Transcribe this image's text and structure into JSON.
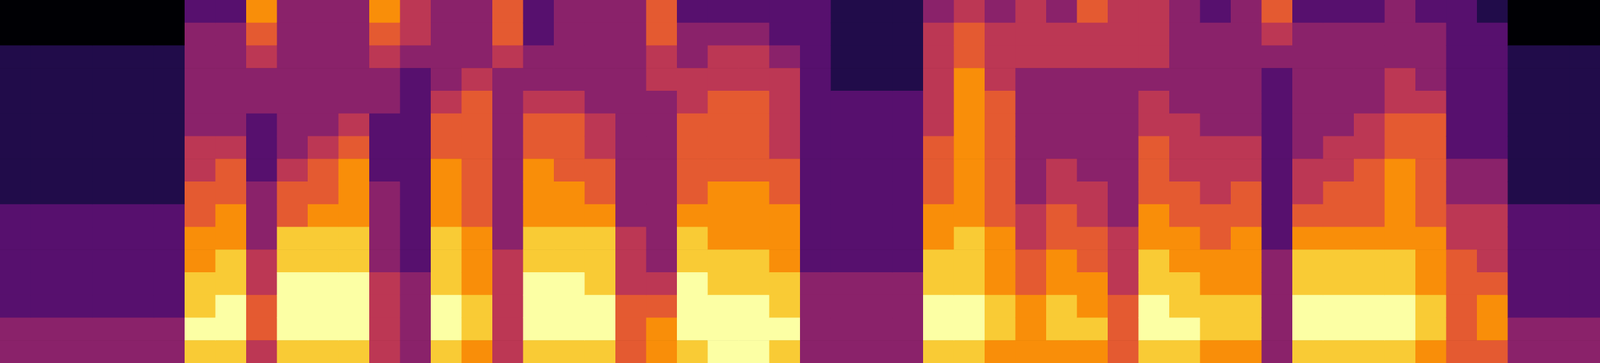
{
  "chart_data": {
    "type": "heatmap",
    "color": "inferno",
    "tick_labels": false,
    "cells": [
      [
        1,
        1,
        2,
        2,
        2,
        2,
        2,
        2,
        2,
        3,
        3,
        3,
        3,
        3,
        4,
        4
      ],
      [
        1,
        1,
        2,
        2,
        2,
        2,
        2,
        2,
        2,
        3,
        3,
        3,
        3,
        3,
        4,
        4
      ],
      [
        1,
        1,
        2,
        2,
        2,
        2,
        2,
        2,
        2,
        3,
        3,
        3,
        3,
        3,
        4,
        4
      ],
      [
        1,
        1,
        2,
        2,
        2,
        2,
        2,
        2,
        2,
        3,
        3,
        3,
        3,
        3,
        4,
        4
      ],
      [
        1,
        1,
        2,
        2,
        2,
        2,
        2,
        2,
        2,
        3,
        3,
        3,
        3,
        3,
        4,
        4
      ],
      [
        1,
        1,
        2,
        2,
        2,
        2,
        2,
        2,
        2,
        3,
        3,
        3,
        3,
        3,
        4,
        4
      ],
      [
        3,
        4,
        4,
        4,
        4,
        4,
        5,
        5,
        6,
        6,
        7,
        7,
        8,
        8,
        9,
        8
      ],
      [
        3,
        4,
        4,
        4,
        4,
        4,
        5,
        6,
        6,
        7,
        7,
        8,
        8,
        9,
        9,
        8
      ],
      [
        7,
        6,
        5,
        4,
        4,
        3,
        3,
        3,
        4,
        4,
        4,
        5,
        5,
        6,
        6,
        5
      ],
      [
        4,
        4,
        4,
        4,
        4,
        4,
        4,
        5,
        6,
        6,
        8,
        8,
        9,
        9,
        9,
        8
      ],
      [
        4,
        4,
        4,
        4,
        4,
        4,
        5,
        6,
        6,
        7,
        8,
        8,
        9,
        9,
        9,
        8
      ],
      [
        4,
        4,
        4,
        4,
        4,
        5,
        6,
        7,
        7,
        7,
        8,
        8,
        9,
        9,
        9,
        8
      ],
      [
        7,
        6,
        5,
        4,
        4,
        3,
        3,
        3,
        4,
        4,
        4,
        4,
        5,
        5,
        5,
        5
      ],
      [
        5,
        5,
        4,
        3,
        3,
        3,
        3,
        3,
        3,
        3,
        3,
        3,
        4,
        4,
        4,
        4
      ],
      [
        4,
        4,
        4,
        4,
        5,
        6,
        6,
        7,
        7,
        7,
        8,
        8,
        8,
        9,
        9,
        8
      ],
      [
        4,
        4,
        4,
        5,
        6,
        6,
        6,
        6,
        6,
        6,
        7,
        7,
        7,
        8,
        8,
        7
      ],
      [
        6,
        6,
        5,
        4,
        4,
        4,
        4,
        4,
        4,
        4,
        4,
        5,
        5,
        5,
        5,
        5
      ],
      [
        3,
        3,
        4,
        4,
        5,
        6,
        6,
        7,
        7,
        7,
        8,
        8,
        9,
        9,
        9,
        8
      ],
      [
        4,
        4,
        4,
        4,
        5,
        6,
        6,
        6,
        7,
        7,
        8,
        8,
        9,
        9,
        9,
        8
      ],
      [
        4,
        4,
        4,
        4,
        4,
        5,
        5,
        6,
        6,
        7,
        8,
        8,
        8,
        9,
        9,
        8
      ],
      [
        4,
        4,
        4,
        4,
        4,
        4,
        4,
        4,
        4,
        4,
        5,
        5,
        5,
        6,
        6,
        6
      ],
      [
        6,
        6,
        5,
        5,
        4,
        4,
        4,
        4,
        4,
        4,
        4,
        4,
        5,
        6,
        7,
        7
      ],
      [
        3,
        4,
        4,
        5,
        5,
        6,
        6,
        6,
        6,
        7,
        8,
        8,
        9,
        9,
        9,
        8
      ],
      [
        3,
        4,
        5,
        5,
        6,
        6,
        6,
        6,
        7,
        7,
        7,
        8,
        8,
        9,
        9,
        9
      ],
      [
        3,
        4,
        5,
        5,
        6,
        6,
        6,
        6,
        7,
        7,
        7,
        8,
        8,
        9,
        9,
        9
      ],
      [
        3,
        3,
        4,
        5,
        5,
        5,
        5,
        6,
        6,
        7,
        7,
        7,
        8,
        8,
        9,
        8
      ],
      [
        3,
        3,
        3,
        3,
        3,
        3,
        3,
        3,
        3,
        3,
        3,
        3,
        4,
        4,
        4,
        4
      ],
      [
        2,
        2,
        2,
        2,
        3,
        3,
        3,
        3,
        3,
        3,
        3,
        3,
        4,
        4,
        4,
        4
      ],
      [
        2,
        2,
        2,
        2,
        3,
        3,
        3,
        3,
        3,
        3,
        3,
        3,
        4,
        4,
        4,
        4
      ],
      [
        2,
        2,
        2,
        2,
        3,
        3,
        3,
        3,
        3,
        3,
        3,
        3,
        4,
        4,
        4,
        4
      ],
      [
        4,
        5,
        5,
        5,
        5,
        5,
        6,
        6,
        6,
        7,
        7,
        8,
        8,
        9,
        9,
        8
      ],
      [
        5,
        6,
        6,
        7,
        7,
        7,
        7,
        7,
        7,
        7,
        8,
        8,
        8,
        9,
        9,
        8
      ],
      [
        4,
        5,
        5,
        5,
        6,
        6,
        6,
        6,
        6,
        6,
        7,
        7,
        7,
        8,
        8,
        7
      ],
      [
        5,
        5,
        5,
        4,
        4,
        4,
        4,
        4,
        4,
        5,
        5,
        6,
        6,
        7,
        7,
        7
      ],
      [
        4,
        5,
        5,
        4,
        4,
        4,
        4,
        5,
        5,
        6,
        6,
        7,
        7,
        8,
        8,
        7
      ],
      [
        6,
        5,
        5,
        4,
        4,
        4,
        4,
        4,
        5,
        5,
        6,
        6,
        7,
        7,
        8,
        7
      ],
      [
        5,
        5,
        5,
        4,
        4,
        4,
        4,
        4,
        4,
        4,
        5,
        5,
        5,
        6,
        6,
        6
      ],
      [
        5,
        5,
        5,
        4,
        5,
        5,
        6,
        6,
        6,
        7,
        7,
        8,
        8,
        9,
        9,
        8
      ],
      [
        4,
        4,
        4,
        4,
        4,
        5,
        5,
        5,
        6,
        6,
        7,
        7,
        8,
        8,
        9,
        8
      ],
      [
        3,
        4,
        4,
        4,
        4,
        4,
        5,
        5,
        5,
        6,
        6,
        7,
        7,
        8,
        8,
        7
      ],
      [
        4,
        4,
        4,
        4,
        4,
        4,
        5,
        5,
        6,
        6,
        7,
        7,
        7,
        8,
        8,
        7
      ],
      [
        6,
        5,
        4,
        3,
        3,
        3,
        3,
        3,
        3,
        3,
        3,
        4,
        4,
        4,
        4,
        4
      ],
      [
        3,
        4,
        4,
        4,
        4,
        4,
        4,
        5,
        5,
        6,
        7,
        8,
        8,
        9,
        9,
        8
      ],
      [
        3,
        4,
        4,
        4,
        4,
        4,
        5,
        5,
        6,
        6,
        7,
        8,
        8,
        9,
        9,
        8
      ],
      [
        3,
        4,
        4,
        4,
        4,
        5,
        5,
        6,
        6,
        6,
        7,
        8,
        8,
        9,
        9,
        8
      ],
      [
        4,
        4,
        4,
        5,
        5,
        6,
        6,
        7,
        7,
        7,
        7,
        8,
        8,
        9,
        9,
        8
      ],
      [
        3,
        4,
        4,
        4,
        5,
        6,
        6,
        6,
        6,
        6,
        7,
        7,
        7,
        8,
        8,
        7
      ],
      [
        3,
        3,
        3,
        3,
        3,
        3,
        3,
        4,
        4,
        5,
        5,
        6,
        6,
        6,
        6,
        6
      ],
      [
        2,
        3,
        3,
        3,
        3,
        3,
        3,
        4,
        4,
        5,
        5,
        5,
        6,
        7,
        7,
        6
      ],
      [
        1,
        1,
        2,
        2,
        2,
        2,
        2,
        2,
        2,
        3,
        3,
        3,
        3,
        3,
        4,
        4
      ],
      [
        1,
        1,
        2,
        2,
        2,
        2,
        2,
        2,
        2,
        3,
        3,
        3,
        3,
        3,
        4,
        4
      ],
      [
        1,
        1,
        2,
        2,
        2,
        2,
        2,
        2,
        2,
        3,
        3,
        3,
        3,
        3,
        4,
        4
      ]
    ]
  }
}
